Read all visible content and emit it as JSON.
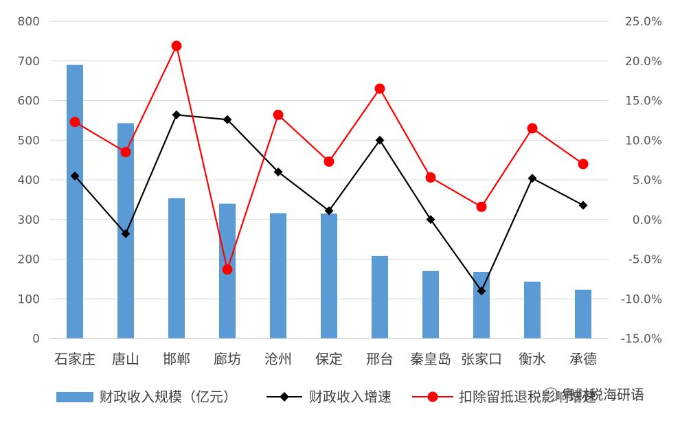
{
  "chart_data": {
    "type": "bar",
    "categories": [
      "石家庄",
      "唐山",
      "邯郸",
      "廊坊",
      "沧州",
      "保定",
      "邢台",
      "秦皇岛",
      "张家口",
      "衡水",
      "承德"
    ],
    "series": [
      {
        "name": "财政收入规模（亿元）",
        "type": "bar",
        "axis": "left",
        "color": "#5B9BD5",
        "values": [
          690,
          543,
          354,
          340,
          316,
          315,
          208,
          170,
          168,
          143,
          123
        ]
      },
      {
        "name": "财政收入增速",
        "type": "line",
        "axis": "right",
        "color": "#000000",
        "marker": "diamond",
        "values": [
          5.5,
          -1.8,
          13.2,
          12.6,
          6.0,
          1.1,
          10.0,
          0.0,
          -9.0,
          5.2,
          1.8
        ]
      },
      {
        "name": "扣除留抵退税影响增速",
        "type": "line",
        "axis": "right",
        "color": "#FF0000",
        "marker": "circle",
        "values": [
          12.3,
          8.5,
          21.9,
          -6.3,
          13.2,
          7.3,
          16.5,
          5.3,
          1.6,
          11.5,
          7.0
        ]
      }
    ],
    "y_left": {
      "min": 0,
      "max": 800,
      "step": 100,
      "ticks": [
        "0",
        "100",
        "200",
        "300",
        "400",
        "500",
        "600",
        "700",
        "800"
      ]
    },
    "y_right": {
      "min": -15,
      "max": 25,
      "step": 5,
      "ticks": [
        "-15.0%",
        "-10.0%",
        "-5.0%",
        "0.0%",
        "5.0%",
        "10.0%",
        "15.0%",
        "20.0%",
        "25.0%"
      ]
    },
    "grid": true,
    "legend_position": "bottom"
  },
  "legend_labels": [
    "财政收入规模（亿元）",
    "财政收入增速",
    "扣除留抵退税影响增速"
  ],
  "watermark": "粤财税海研语"
}
